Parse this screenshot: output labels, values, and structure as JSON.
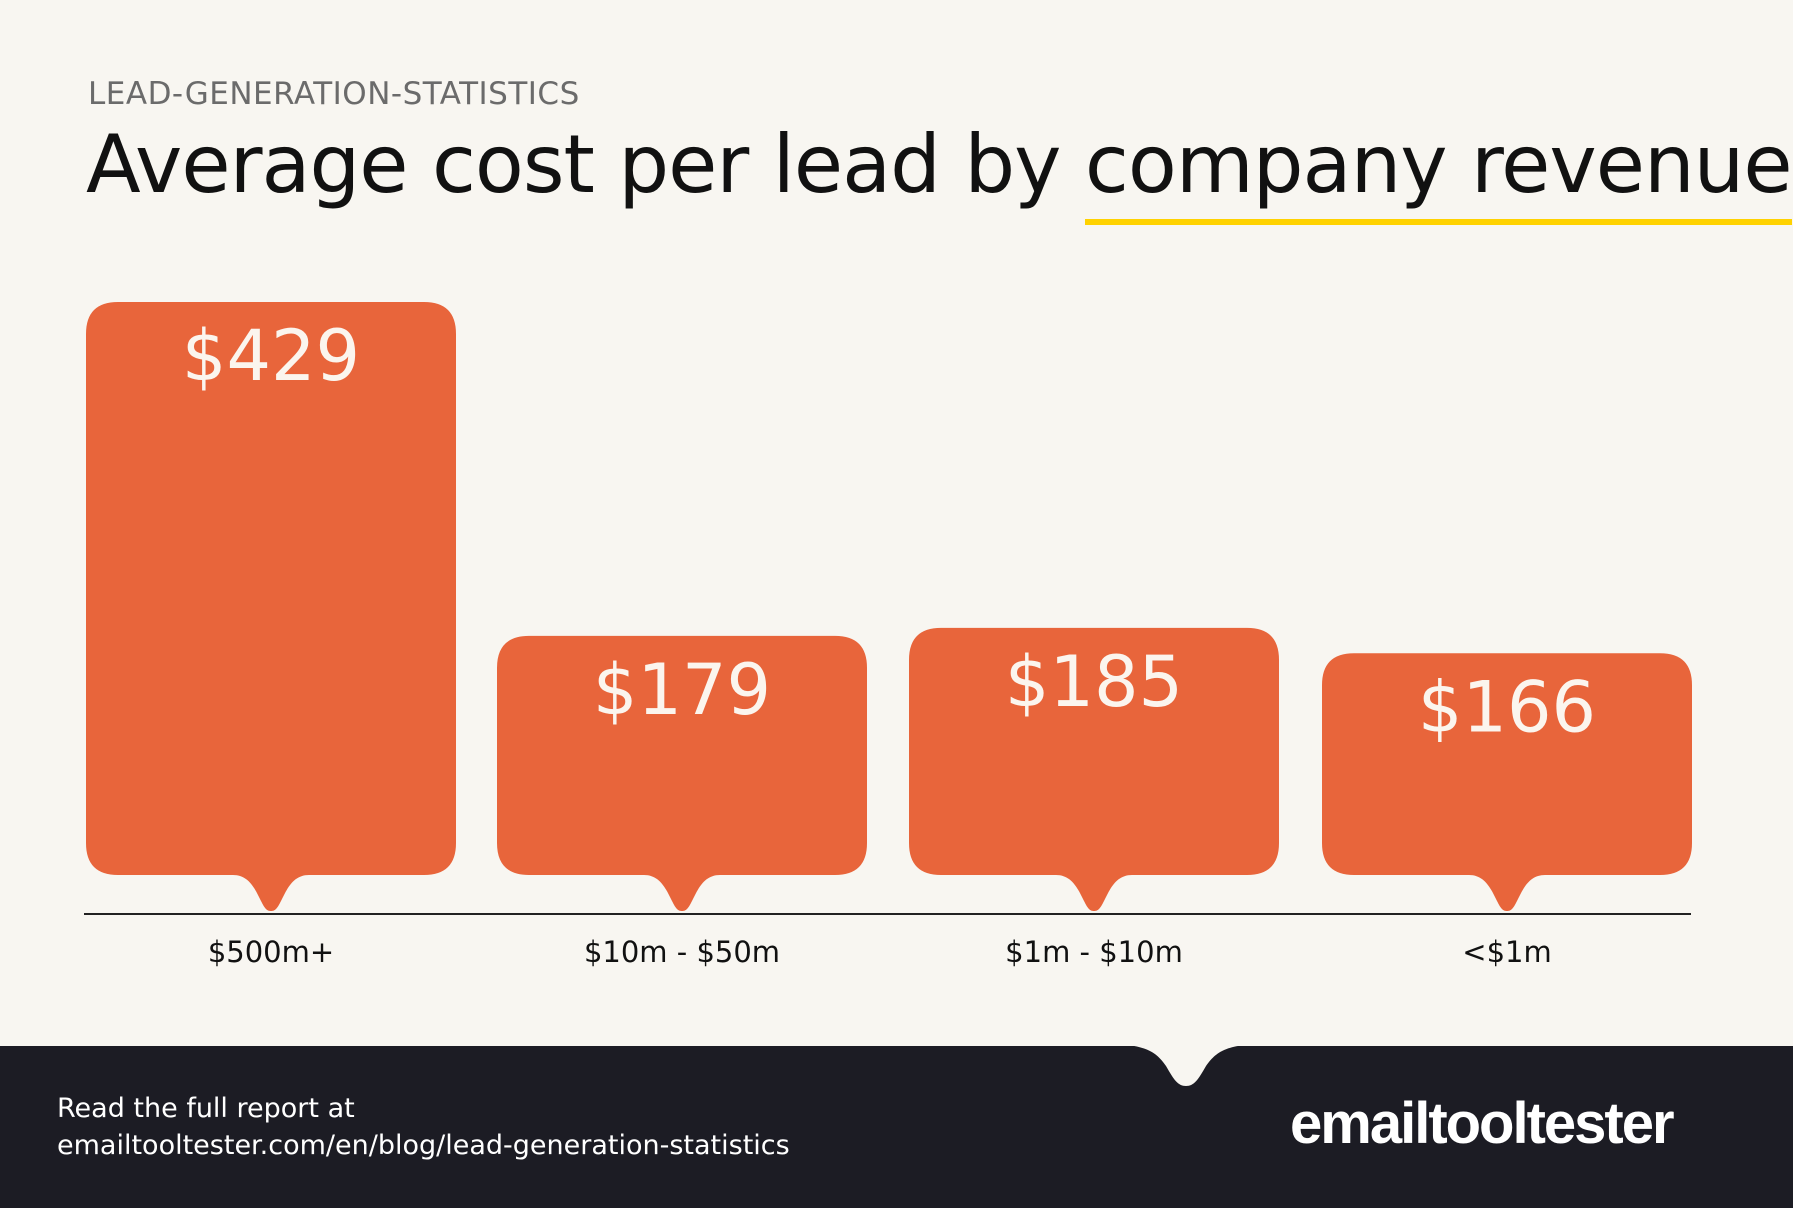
{
  "header": {
    "kicker": "LEAD-GENERATION-STATISTICS",
    "title_plain": "Average cost per lead by ",
    "title_highlight": "company revenue"
  },
  "colors": {
    "bar": "#e8653b",
    "background": "#f8f6f1",
    "highlight": "#ffd200",
    "footer": "#1c1c24"
  },
  "chart_data": {
    "type": "bar",
    "title": "Average cost per lead by company revenue",
    "categories": [
      "$500m+",
      "$10m - $50m",
      "$1m - $10m",
      "<$1m"
    ],
    "values": [
      429,
      179,
      185,
      166
    ],
    "data_labels": [
      "$429",
      "$179",
      "$185",
      "$166"
    ],
    "xlabel": "",
    "ylabel": "",
    "grid": false
  },
  "footer": {
    "line1": "Read the full report at",
    "line2": "emailtooltester.com/en/blog/lead-generation-statistics",
    "logo": "emailtooltester"
  }
}
